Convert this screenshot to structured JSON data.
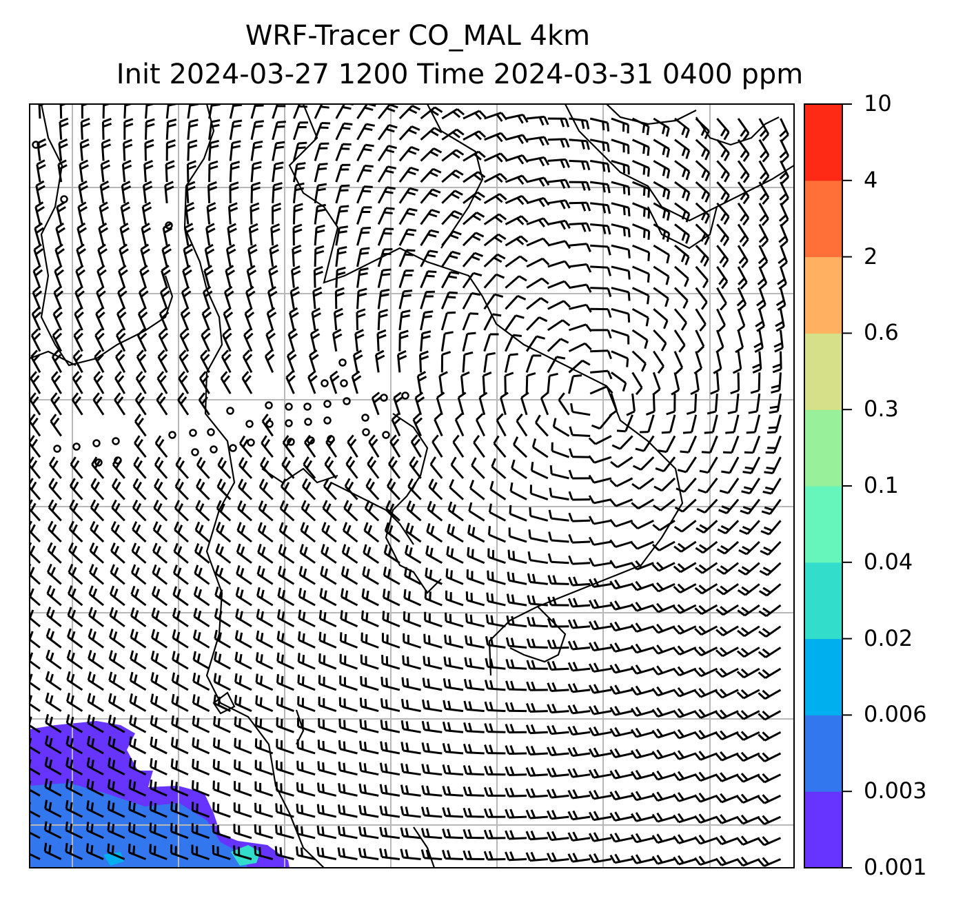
{
  "title": {
    "line1": "WRF-Tracer CO_MAL 4km",
    "line2": "Init 2024-03-27 1200 Time 2024-03-31 0400 ppm"
  },
  "colorbar": {
    "ticks": [
      "0.001",
      "0.003",
      "0.006",
      "0.02",
      "0.04",
      "0.1",
      "0.3",
      "0.6",
      "2",
      "4",
      "10"
    ],
    "colors": [
      "#6633ff",
      "#3377ee",
      "#00b0ee",
      "#33ddcc",
      "#66f5bb",
      "#99f09a",
      "#d6e088",
      "#ffb060",
      "#ff7038",
      "#ff2a15"
    ]
  },
  "map": {
    "gridlines": true,
    "wind_barbs": true,
    "tracer_plume_location": "bottom-left",
    "plume_colors": [
      "#6633ff",
      "#3377ee",
      "#00b0ee",
      "#33ddcc"
    ]
  }
}
